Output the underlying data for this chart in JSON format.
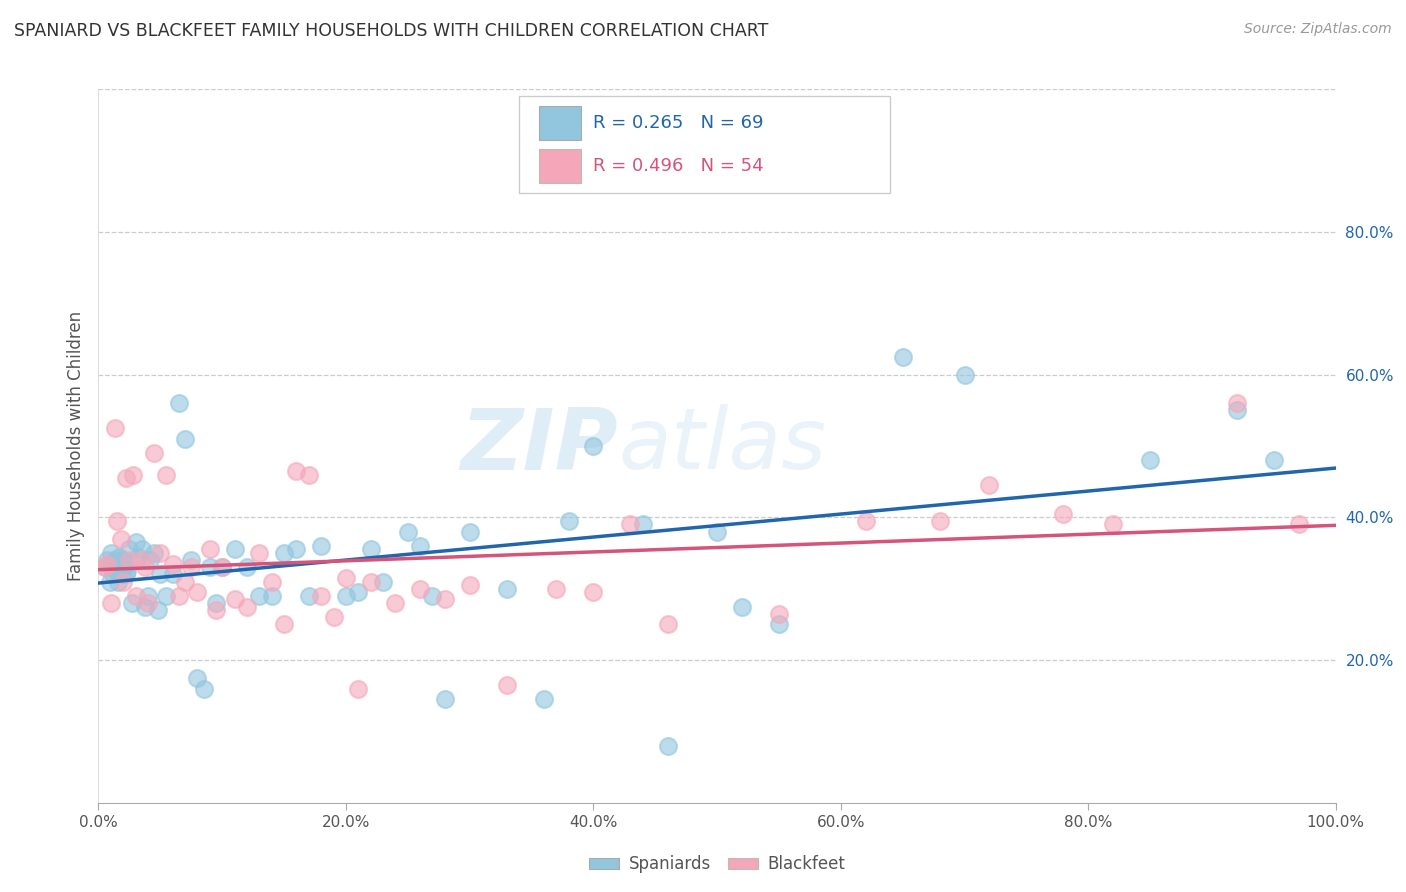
{
  "title": "SPANIARD VS BLACKFEET FAMILY HOUSEHOLDS WITH CHILDREN CORRELATION CHART",
  "source": "Source: ZipAtlas.com",
  "ylabel": "Family Households with Children",
  "spaniards_R": 0.265,
  "spaniards_N": 69,
  "blackfeet_R": 0.496,
  "blackfeet_N": 54,
  "blue_color": "#92C5DE",
  "pink_color": "#F4A7B9",
  "blue_line_color": "#2166ac",
  "pink_line_color": "#D6537A",
  "text_color_blue": "#2166ac",
  "text_color_dark": "#555555",
  "grid_color": "#cccccc",
  "background_color": "#ffffff",
  "xlim": [
    0,
    1
  ],
  "ylim": [
    0,
    1
  ],
  "xtick_labels": [
    "0.0%",
    "20.0%",
    "40.0%",
    "60.0%",
    "80.0%",
    "100.0%"
  ],
  "xtick_values": [
    0.0,
    0.2,
    0.4,
    0.6,
    0.8,
    1.0
  ],
  "ytick_labels_right": [
    "20.0%",
    "40.0%",
    "60.0%",
    "80.0%"
  ],
  "ytick_values_right": [
    0.2,
    0.4,
    0.6,
    0.8
  ],
  "spaniards_x": [
    0.005,
    0.007,
    0.009,
    0.01,
    0.011,
    0.012,
    0.013,
    0.014,
    0.015,
    0.016,
    0.017,
    0.018,
    0.019,
    0.02,
    0.021,
    0.022,
    0.023,
    0.025,
    0.027,
    0.03,
    0.032,
    0.035,
    0.038,
    0.04,
    0.042,
    0.045,
    0.048,
    0.05,
    0.055,
    0.06,
    0.065,
    0.07,
    0.075,
    0.08,
    0.085,
    0.09,
    0.095,
    0.1,
    0.11,
    0.12,
    0.13,
    0.14,
    0.15,
    0.16,
    0.17,
    0.18,
    0.2,
    0.21,
    0.22,
    0.23,
    0.25,
    0.26,
    0.27,
    0.28,
    0.3,
    0.33,
    0.36,
    0.38,
    0.4,
    0.44,
    0.46,
    0.5,
    0.52,
    0.55,
    0.65,
    0.7,
    0.85,
    0.92,
    0.95
  ],
  "spaniards_y": [
    0.33,
    0.34,
    0.31,
    0.35,
    0.33,
    0.32,
    0.34,
    0.335,
    0.325,
    0.31,
    0.345,
    0.33,
    0.32,
    0.34,
    0.33,
    0.32,
    0.325,
    0.355,
    0.28,
    0.365,
    0.345,
    0.355,
    0.275,
    0.29,
    0.34,
    0.35,
    0.27,
    0.32,
    0.29,
    0.32,
    0.56,
    0.51,
    0.34,
    0.175,
    0.16,
    0.33,
    0.28,
    0.33,
    0.355,
    0.33,
    0.29,
    0.29,
    0.35,
    0.355,
    0.29,
    0.36,
    0.29,
    0.295,
    0.355,
    0.31,
    0.38,
    0.36,
    0.29,
    0.145,
    0.38,
    0.3,
    0.145,
    0.395,
    0.5,
    0.39,
    0.08,
    0.38,
    0.275,
    0.25,
    0.625,
    0.6,
    0.48,
    0.55,
    0.48
  ],
  "blackfeet_x": [
    0.005,
    0.007,
    0.01,
    0.013,
    0.015,
    0.018,
    0.02,
    0.022,
    0.025,
    0.028,
    0.03,
    0.035,
    0.038,
    0.04,
    0.045,
    0.05,
    0.055,
    0.06,
    0.065,
    0.07,
    0.075,
    0.08,
    0.09,
    0.095,
    0.1,
    0.11,
    0.12,
    0.13,
    0.14,
    0.15,
    0.16,
    0.17,
    0.18,
    0.19,
    0.2,
    0.21,
    0.22,
    0.24,
    0.26,
    0.28,
    0.3,
    0.33,
    0.37,
    0.4,
    0.43,
    0.46,
    0.55,
    0.62,
    0.68,
    0.72,
    0.78,
    0.82,
    0.92,
    0.97
  ],
  "blackfeet_y": [
    0.33,
    0.335,
    0.28,
    0.525,
    0.395,
    0.37,
    0.31,
    0.455,
    0.34,
    0.46,
    0.29,
    0.34,
    0.33,
    0.28,
    0.49,
    0.35,
    0.46,
    0.335,
    0.29,
    0.31,
    0.33,
    0.295,
    0.355,
    0.27,
    0.33,
    0.285,
    0.275,
    0.35,
    0.31,
    0.25,
    0.465,
    0.46,
    0.29,
    0.26,
    0.315,
    0.16,
    0.31,
    0.28,
    0.3,
    0.285,
    0.305,
    0.165,
    0.3,
    0.295,
    0.39,
    0.25,
    0.265,
    0.395,
    0.395,
    0.445,
    0.405,
    0.39,
    0.56,
    0.39
  ],
  "watermark_zip": "ZIP",
  "watermark_atlas": "atlas",
  "figsize": [
    14.06,
    8.92
  ],
  "dpi": 100
}
